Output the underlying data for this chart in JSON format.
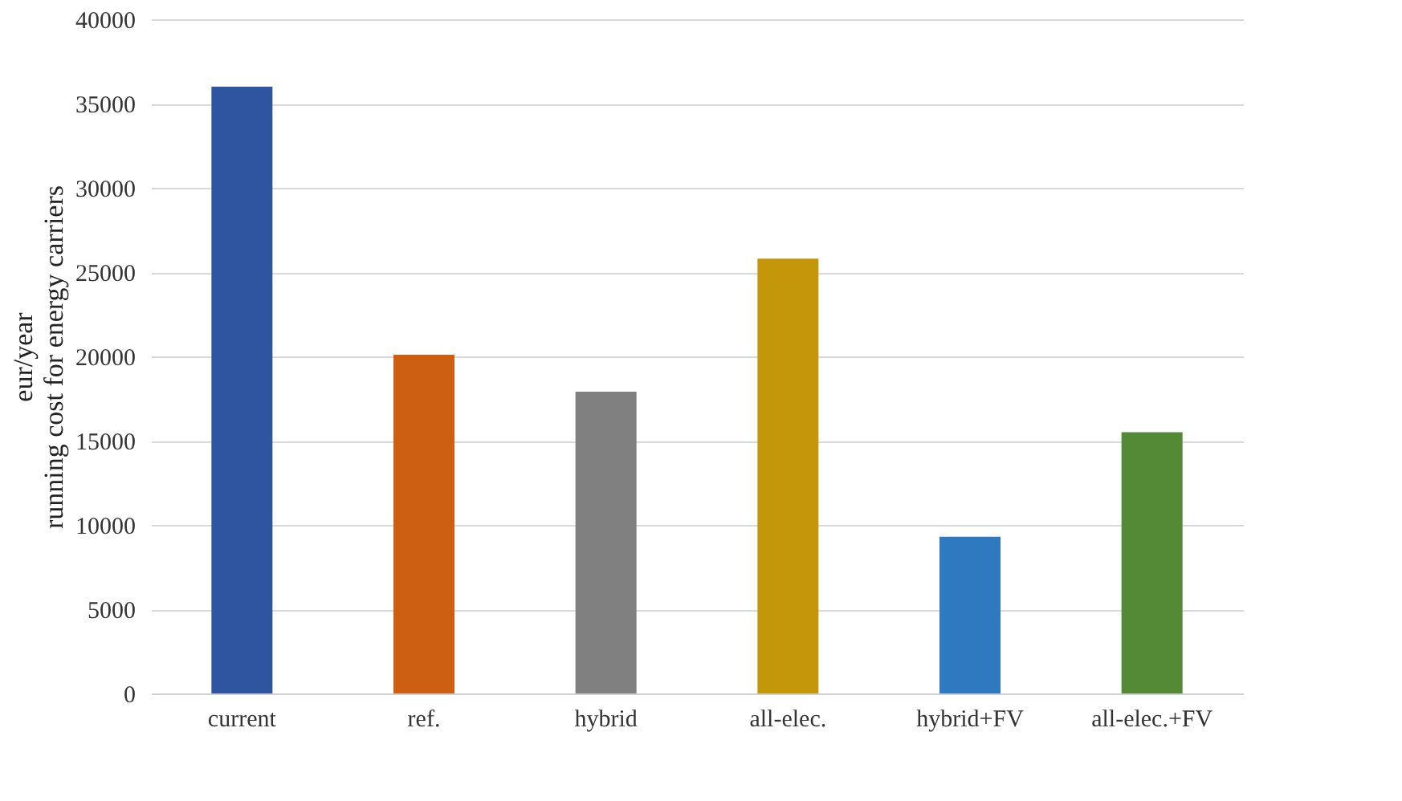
{
  "chart_data": {
    "type": "bar",
    "ylabel": "eur/year\nrunning cost for energy carriers",
    "categories": [
      "current",
      "ref.",
      "hybrid",
      "all-elec.",
      "hybrid+FV",
      "all-elec.+FV"
    ],
    "values": [
      36000,
      20100,
      17900,
      25800,
      9300,
      15500
    ],
    "colors": [
      "#2f55a0",
      "#cc5f12",
      "#808080",
      "#c4970a",
      "#2e79c0",
      "#548a35"
    ],
    "ylim": [
      0,
      40000
    ],
    "yticks": [
      0,
      5000,
      10000,
      15000,
      20000,
      25000,
      30000,
      35000,
      40000
    ],
    "grid": "y"
  }
}
